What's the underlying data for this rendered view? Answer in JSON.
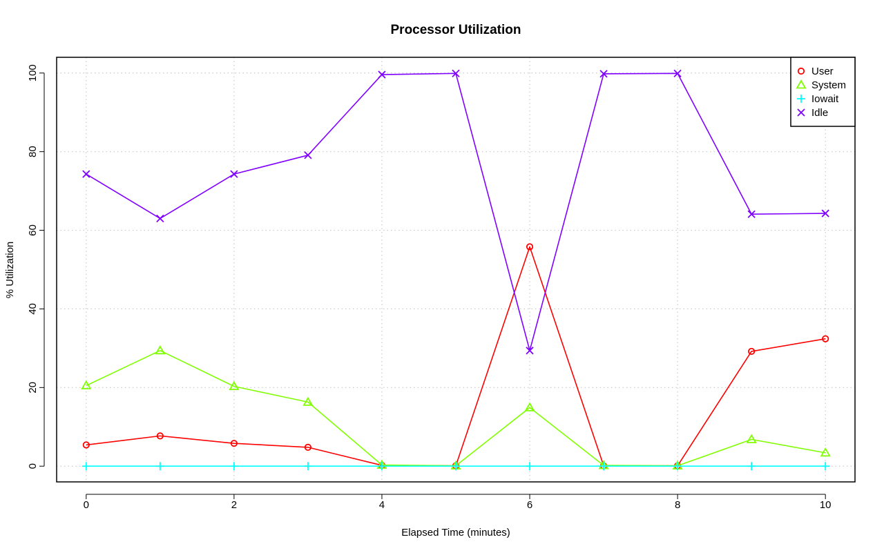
{
  "chart_data": {
    "type": "line",
    "title": "Processor Utilization",
    "xlabel": "Elapsed Time (minutes)",
    "ylabel": "% Utilization",
    "x": [
      0,
      1,
      2,
      3,
      4,
      5,
      6,
      7,
      8,
      9,
      10
    ],
    "xlim": [
      -0.4,
      10.4
    ],
    "ylim": [
      -4,
      104
    ],
    "xticks": [
      0,
      2,
      4,
      6,
      8,
      10
    ],
    "yticks": [
      0,
      20,
      40,
      60,
      80,
      100
    ],
    "grid": true,
    "legend_position": "top-right",
    "series": [
      {
        "name": "User",
        "color": "#ff0000",
        "marker": "circle",
        "values": [
          5.4,
          7.7,
          5.8,
          4.8,
          0.2,
          0.1,
          55.8,
          0.1,
          0.1,
          29.2,
          32.4
        ]
      },
      {
        "name": "System",
        "color": "#80ff00",
        "marker": "triangle",
        "values": [
          20.5,
          29.4,
          20.3,
          16.3,
          0.3,
          0.1,
          14.9,
          0.2,
          0.1,
          6.8,
          3.4
        ]
      },
      {
        "name": "Iowait",
        "color": "#00ffff",
        "marker": "plus",
        "values": [
          0,
          0,
          0,
          0,
          0,
          0,
          0,
          0,
          0,
          0,
          0
        ]
      },
      {
        "name": "Idle",
        "color": "#8000ff",
        "marker": "cross",
        "values": [
          74.3,
          63.0,
          74.3,
          79.1,
          99.6,
          99.9,
          29.4,
          99.8,
          99.9,
          64.1,
          64.3
        ]
      }
    ]
  }
}
